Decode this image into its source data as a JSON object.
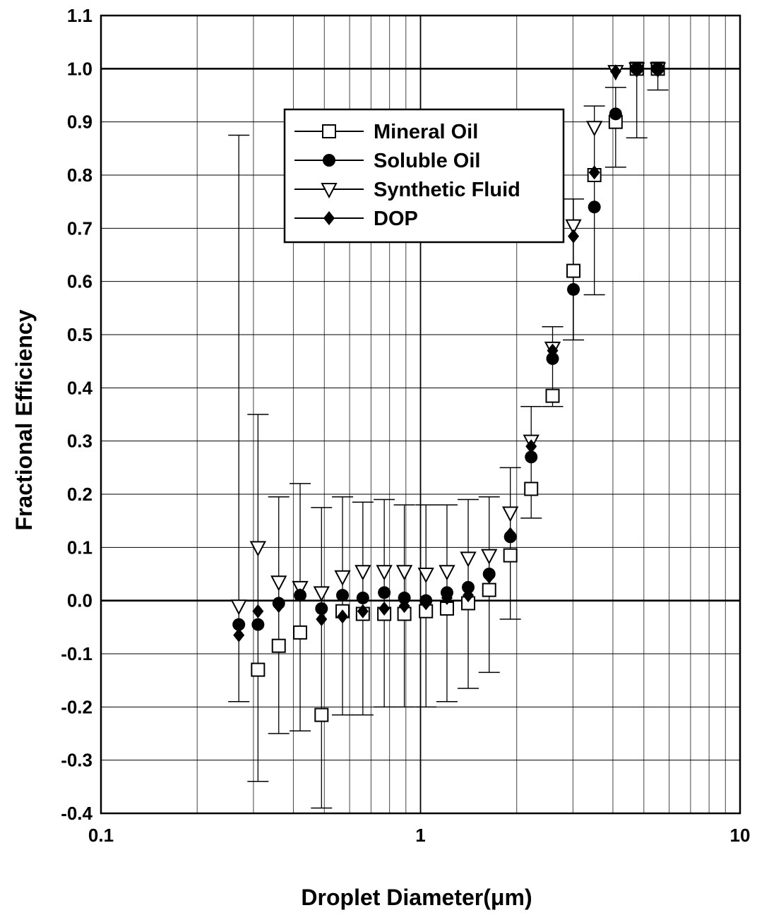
{
  "chart_data": {
    "type": "scatter",
    "xscale": "log",
    "xlim": [
      0.1,
      10
    ],
    "ylim": [
      -0.4,
      1.1
    ],
    "grid": true,
    "legend_position": "upper-left",
    "xlabel": "Droplet Diameter(μm)",
    "ylabel": "Fractional Efficiency",
    "x_ticks": [
      0.1,
      1,
      10
    ],
    "x_tick_labels": [
      "0.1",
      "1",
      "10"
    ],
    "y_ticks": [
      -0.4,
      -0.3,
      -0.2,
      -0.1,
      0.0,
      0.1,
      0.2,
      0.3,
      0.4,
      0.5,
      0.6,
      0.7,
      0.8,
      0.9,
      1.0,
      1.1
    ],
    "y_tick_labels": [
      "-0.4",
      "-0.3",
      "-0.2",
      "-0.1",
      "0.0",
      "0.1",
      "0.2",
      "0.3",
      "0.4",
      "0.5",
      "0.6",
      "0.7",
      "0.8",
      "0.9",
      "1.0",
      "1.1"
    ],
    "x": [
      0.27,
      0.31,
      0.36,
      0.42,
      0.49,
      0.57,
      0.66,
      0.77,
      0.89,
      1.04,
      1.21,
      1.41,
      1.64,
      1.91,
      2.22,
      2.59,
      3.01,
      3.5,
      4.08,
      4.75,
      5.53
    ],
    "series": [
      {
        "name": "Mineral Oil",
        "marker": "open-square",
        "x": [
          0.31,
          0.36,
          0.42,
          0.49,
          0.57,
          0.66,
          0.77,
          0.89,
          1.04,
          1.21,
          1.41,
          1.64,
          1.91,
          2.22,
          2.59,
          3.01,
          3.5,
          4.08,
          4.75,
          5.53
        ],
        "y": [
          -0.13,
          -0.085,
          -0.06,
          -0.215,
          -0.02,
          -0.025,
          -0.025,
          -0.025,
          -0.02,
          -0.015,
          -0.005,
          0.02,
          0.085,
          0.21,
          0.385,
          0.62,
          0.8,
          0.9,
          1.0,
          1.0
        ]
      },
      {
        "name": "Soluble Oil",
        "marker": "filled-circle",
        "x": [
          0.27,
          0.31,
          0.36,
          0.42,
          0.49,
          0.57,
          0.66,
          0.77,
          0.89,
          1.04,
          1.21,
          1.41,
          1.64,
          1.91,
          2.22,
          2.59,
          3.01,
          3.5,
          4.08,
          4.75,
          5.53
        ],
        "y": [
          -0.045,
          -0.045,
          -0.005,
          0.01,
          -0.015,
          0.01,
          0.005,
          0.015,
          0.005,
          0.0,
          0.015,
          0.025,
          0.05,
          0.12,
          0.27,
          0.455,
          0.585,
          0.74,
          0.915,
          1.0,
          1.0
        ]
      },
      {
        "name": "Synthetic Fluid",
        "marker": "open-triangle-down",
        "x": [
          0.27,
          0.31,
          0.36,
          0.42,
          0.49,
          0.57,
          0.66,
          0.77,
          0.89,
          1.04,
          1.21,
          1.41,
          1.64,
          1.91,
          2.22,
          2.59,
          3.01,
          3.5,
          4.08,
          4.75,
          5.53
        ],
        "y": [
          -0.01,
          0.1,
          0.035,
          0.025,
          0.015,
          0.045,
          0.055,
          0.055,
          0.055,
          0.05,
          0.055,
          0.08,
          0.085,
          0.165,
          0.3,
          0.475,
          0.705,
          0.89,
          0.995,
          1.0,
          1.0
        ]
      },
      {
        "name": "DOP",
        "marker": "filled-diamond",
        "x": [
          0.27,
          0.31,
          0.36,
          0.42,
          0.49,
          0.57,
          0.66,
          0.77,
          0.89,
          1.04,
          1.21,
          1.41,
          1.64,
          1.91,
          2.22,
          2.59,
          3.01,
          3.5,
          4.08,
          4.75,
          5.53
        ],
        "y": [
          -0.065,
          -0.02,
          -0.01,
          0.01,
          -0.035,
          -0.03,
          -0.02,
          -0.015,
          -0.01,
          -0.005,
          0.005,
          0.01,
          0.045,
          0.125,
          0.29,
          0.47,
          0.685,
          0.805,
          0.995,
          1.0,
          1.0
        ]
      }
    ],
    "error_bars": {
      "x": [
        0.27,
        0.31,
        0.36,
        0.42,
        0.49,
        0.57,
        0.66,
        0.77,
        0.89,
        1.04,
        1.21,
        1.41,
        1.64,
        1.91,
        2.22,
        2.59,
        3.01,
        3.5,
        4.08,
        4.75,
        5.53
      ],
      "low": [
        -0.19,
        -0.34,
        -0.25,
        -0.245,
        -0.39,
        -0.215,
        -0.215,
        -0.2,
        -0.2,
        -0.2,
        -0.19,
        -0.165,
        -0.135,
        -0.035,
        0.155,
        0.365,
        0.49,
        0.575,
        0.815,
        0.87,
        0.96
      ],
      "high": [
        0.875,
        0.35,
        0.195,
        0.22,
        0.175,
        0.195,
        0.185,
        0.19,
        0.18,
        0.18,
        0.18,
        0.19,
        0.195,
        0.25,
        0.365,
        0.515,
        0.755,
        0.93,
        0.965,
        1.0,
        1.0
      ]
    }
  }
}
